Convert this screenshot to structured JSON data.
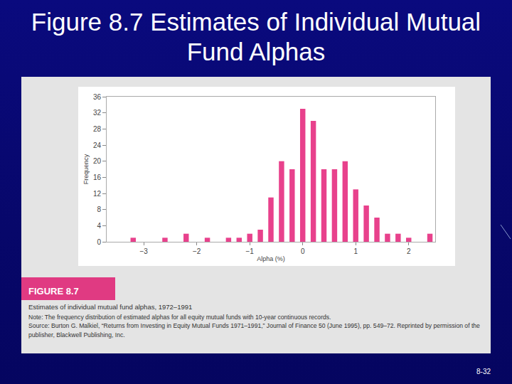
{
  "slide": {
    "title": "Figure 8.7 Estimates of Individual Mutual Fund Alphas",
    "figure_label": "FIGURE 8.7",
    "caption": "Estimates of individual mutual fund alphas, 1972–1991",
    "note": "Note: The frequency distribution of estimated alphas for all equity mutual funds with 10-year continuous records.",
    "source": "Source: Burton G. Malkiel, “Returns from Investing in Equity Mutual Funds 1971–1991,” Journal of Finance 50 (June 1995), pp. 549–72. Reprinted by permission of the publisher, Blackwell Publishing, Inc.",
    "page_number": "8-32"
  },
  "chart_data": {
    "type": "histogram",
    "x_label": "Alpha (%)",
    "y_label": "Frequency",
    "bins": [
      -3.3,
      -3.1,
      -2.9,
      -2.7,
      -2.5,
      -2.3,
      -2.1,
      -1.9,
      -1.7,
      -1.5,
      -1.3,
      -1.1,
      -0.9,
      -0.7,
      -0.5,
      -0.3,
      -0.1,
      0.1,
      0.3,
      0.5,
      0.7,
      0.9,
      1.1,
      1.3,
      1.5,
      1.7,
      1.9,
      2.1,
      2.3,
      2.5
    ],
    "values": [
      1,
      0,
      0,
      1,
      0,
      2,
      0,
      1,
      0,
      1,
      1,
      2,
      3,
      11,
      20,
      18,
      33,
      30,
      18,
      18,
      20,
      13,
      9,
      6,
      2,
      2,
      1,
      0,
      2
    ],
    "color": "#e8418c",
    "xlim": [
      -3.7,
      2.5
    ],
    "xticks": [
      {
        "value": -3,
        "label": "−3"
      },
      {
        "value": -2,
        "label": "−2"
      },
      {
        "value": -1,
        "label": "−1"
      },
      0,
      1,
      2
    ],
    "ylim": [
      0,
      36
    ],
    "yticks": [
      0,
      4,
      8,
      12,
      16,
      20,
      24,
      28,
      32,
      36
    ],
    "grid": false
  }
}
